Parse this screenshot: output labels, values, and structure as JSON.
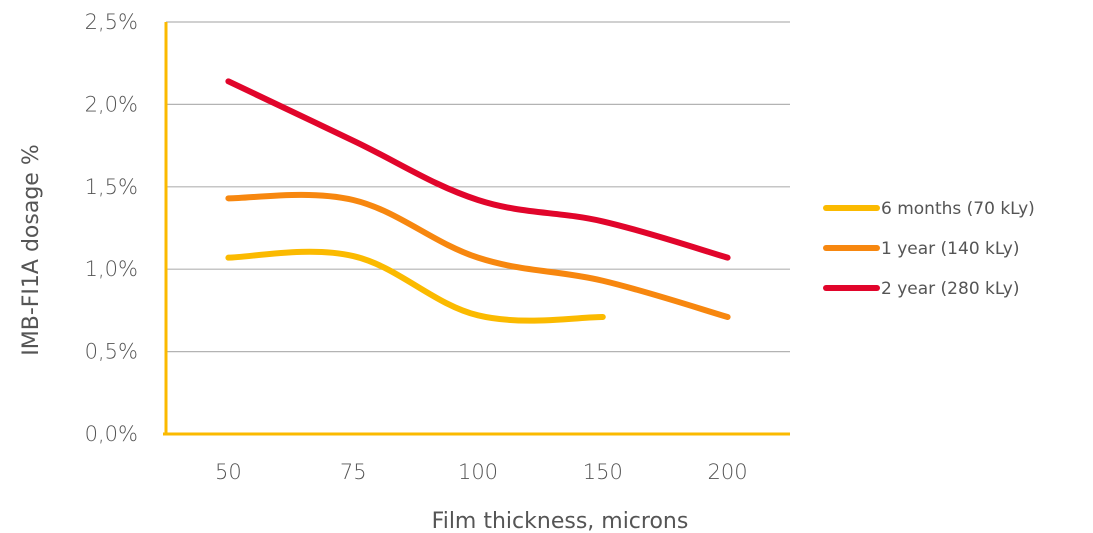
{
  "chart_data": {
    "type": "line",
    "title": "",
    "xlabel": "Film thickness, microns",
    "ylabel": "IMB-FI1A dosage %",
    "categories": [
      "50",
      "75",
      "100",
      "150",
      "200"
    ],
    "yticks": [
      "0,0%",
      "0,5%",
      "1,0%",
      "1,5%",
      "2,0%",
      "2,5%"
    ],
    "ylim": [
      0,
      2.5
    ],
    "grid": true,
    "legend_position": "right",
    "series": [
      {
        "name": "6 months (70 kLy)",
        "color": "#FBBA00",
        "values": [
          1.07,
          1.08,
          0.72,
          0.71,
          null
        ]
      },
      {
        "name": "1 year (140 kLy)",
        "color": "#F7870F",
        "values": [
          1.43,
          1.42,
          1.07,
          0.93,
          0.71
        ]
      },
      {
        "name": "2 year (280 kLy)",
        "color": "#E1052B",
        "values": [
          2.14,
          1.78,
          1.42,
          1.29,
          1.07
        ]
      }
    ]
  }
}
